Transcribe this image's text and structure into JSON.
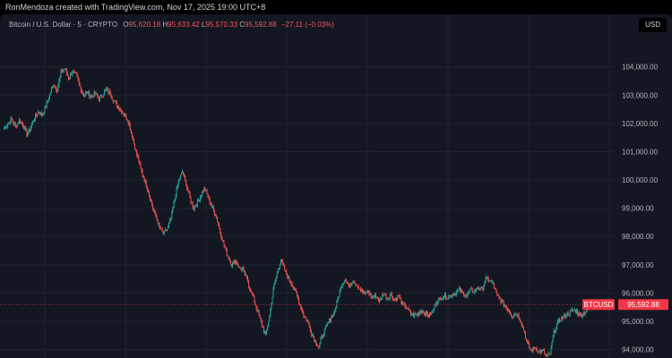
{
  "header": {
    "attribution": "RonMendoza created with TradingView.com, Nov 17, 2025 19:00 UTC+8"
  },
  "legend": {
    "symbol_desc": "Bitcoin / U.S. Dollar · 5 · CRYPTO",
    "open_label": "O",
    "open": "95,620.18",
    "high_label": "H",
    "high": "95,633.42",
    "low_label": "L",
    "low": "95,570.33",
    "close_label": "C",
    "close": "95,592.88",
    "change": "−27.11 (−0.03%)"
  },
  "currency_badge": "USD",
  "colors": {
    "up": "#26a69a",
    "down": "#ef5350",
    "background": "#131722",
    "grid": "#1e2230",
    "last_price": "#f23645"
  },
  "chart_data": {
    "type": "candlestick",
    "symbol": "BTCUSD",
    "interval": "5",
    "last_price": 95592.88,
    "last_price_label": "95,592.88",
    "ylim": [
      93700,
      105100
    ],
    "y_ticks": [
      94000,
      95000,
      96000,
      97000,
      98000,
      99000,
      100000,
      101000,
      102000,
      103000,
      104000
    ],
    "y_tick_labels": [
      "94,000.00",
      "95,000.00",
      "96,000.00",
      "97,000.00",
      "98,000.00",
      "99,000.00",
      "100,000.00",
      "101,000.00",
      "102,000.00",
      "103,000.00",
      "104,000.00"
    ],
    "grid": true,
    "price_path_closes": [
      101800,
      102000,
      102150,
      101900,
      102100,
      101950,
      101600,
      101850,
      102200,
      102400,
      102300,
      102600,
      103000,
      103400,
      103200,
      103800,
      103950,
      103600,
      103850,
      103700,
      103300,
      103000,
      103100,
      102950,
      103050,
      102900,
      103000,
      103200,
      103050,
      102800,
      102600,
      102450,
      102250,
      102000,
      101400,
      100900,
      100400,
      100000,
      99600,
      99100,
      98700,
      98300,
      98100,
      98250,
      98650,
      99300,
      99950,
      100300,
      99850,
      99350,
      99000,
      99200,
      99500,
      99700,
      99300,
      99000,
      98700,
      98150,
      97700,
      97300,
      97000,
      97150,
      96900,
      96800,
      96500,
      96100,
      95700,
      95300,
      94850,
      94500,
      95200,
      96100,
      96700,
      97200,
      96800,
      96500,
      96300,
      96000,
      95600,
      95200,
      95000,
      94600,
      94300,
      94100,
      94500,
      94800,
      95100,
      95300,
      95800,
      96300,
      96500,
      96200,
      96450,
      96300,
      96100,
      95950,
      96050,
      95850,
      95900,
      95700,
      96000,
      95800,
      95950,
      95750,
      95900,
      95600,
      95500,
      95300,
      95200,
      95250,
      95400,
      95300,
      95200,
      95350,
      95700,
      95800,
      95900,
      95850,
      95950,
      96000,
      96100,
      96000,
      95900,
      96100,
      96050,
      96200,
      96100,
      96500,
      96450,
      96300,
      95900,
      95750,
      95550,
      95400,
      95200,
      95300,
      95100,
      94700,
      94200,
      93950,
      94100,
      93900,
      93950,
      93750,
      93850,
      94600,
      94950,
      95100,
      95200,
      95300,
      95400,
      95350,
      95200,
      95300,
      95450,
      95600,
      95700,
      95650,
      95620,
      95593
    ]
  }
}
